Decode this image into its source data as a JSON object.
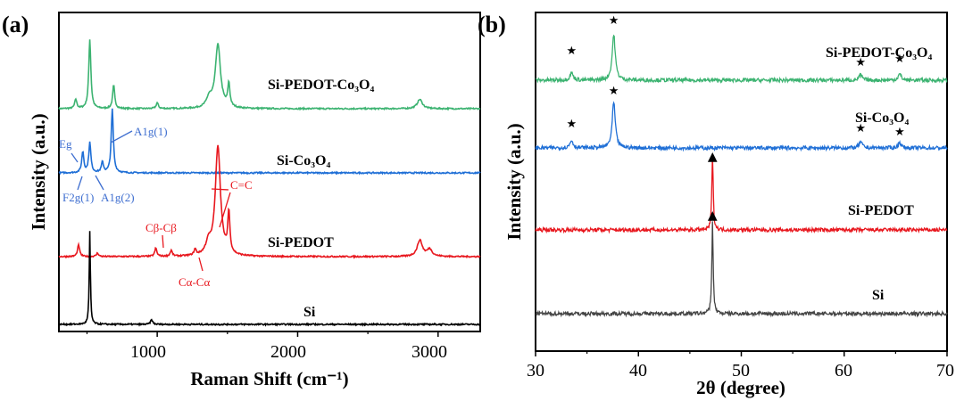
{
  "chart_data": [
    {
      "panel": "(a)",
      "type": "line",
      "xlabel": "Raman Shift (cm⁻¹)",
      "ylabel": "Intensity (a.u.)",
      "xlim": [
        300,
        3300
      ],
      "x_ticks": [
        "1000",
        "2000",
        "3000"
      ],
      "x_tick_values": [
        1000,
        2000,
        3000
      ],
      "y_ticks": "none",
      "series": [
        {
          "name": "Si-PEDOT-Co3O4",
          "label": "Si-PEDOT-Co₃O₄",
          "color": "#3cb371",
          "peaks": [
            [
              420,
              0.08
            ],
            [
              520,
              0.6
            ],
            [
              690,
              0.2
            ],
            [
              1000,
              0.05
            ],
            [
              1370,
              0.08
            ],
            [
              1432,
              0.55
            ],
            [
              1510,
              0.2
            ],
            [
              2870,
              0.08
            ]
          ]
        },
        {
          "name": "Si-Co3O4",
          "label": "Si-Co₃O₄",
          "color": "#1f6fd6",
          "peaks": [
            [
              470,
              0.18
            ],
            [
              520,
              0.26
            ],
            [
              610,
              0.09
            ],
            [
              680,
              0.55
            ]
          ]
        },
        {
          "name": "Si-PEDOT",
          "label": "Si-PEDOT",
          "color": "#e8171e",
          "peaks": [
            [
              440,
              0.1
            ],
            [
              575,
              0.03
            ],
            [
              990,
              0.07
            ],
            [
              1100,
              0.05
            ],
            [
              1270,
              0.05
            ],
            [
              1365,
              0.1
            ],
            [
              1432,
              0.95
            ],
            [
              1510,
              0.35
            ],
            [
              2870,
              0.14
            ],
            [
              2940,
              0.06
            ]
          ]
        },
        {
          "name": "Si",
          "label": "Si",
          "color": "#000000",
          "peaks": [
            [
              520,
              0.8
            ],
            [
              960,
              0.04
            ]
          ]
        }
      ],
      "annotations": [
        {
          "text": "A1g(1)",
          "color": "#3f6fd0"
        },
        {
          "text": "Eg",
          "color": "#3f6fd0"
        },
        {
          "text": "F2g(1)",
          "color": "#3f6fd0"
        },
        {
          "text": "A1g(2)",
          "color": "#3f6fd0"
        },
        {
          "text": "C=C",
          "color": "#e8171e"
        },
        {
          "text": "Cβ-Cβ",
          "color": "#e8171e"
        },
        {
          "text": "Cα-Cα",
          "color": "#e8171e"
        }
      ]
    },
    {
      "panel": "(b)",
      "type": "line",
      "xlabel": "2θ (degree)",
      "ylabel": "Intensity (a.u.)",
      "xlim": [
        30,
        70
      ],
      "x_ticks": [
        "30",
        "40",
        "50",
        "60",
        "70"
      ],
      "x_tick_values": [
        30,
        40,
        50,
        60,
        70
      ],
      "y_ticks": "none",
      "series": [
        {
          "name": "Si-PEDOT-Co3O4",
          "label": "Si-PEDOT-Co₃O₄",
          "color": "#3cb371",
          "peaks": [
            [
              33.5,
              0.1
            ],
            [
              37.6,
              0.6
            ],
            [
              61.6,
              0.07
            ],
            [
              65.4,
              0.08
            ]
          ],
          "markers": "★ at 33.5, 37.6, 61.6, 65.4"
        },
        {
          "name": "Si-Co3O4",
          "label": "Si-Co₃O₄",
          "color": "#1f6fd6",
          "peaks": [
            [
              33.5,
              0.1
            ],
            [
              37.6,
              0.6
            ],
            [
              61.6,
              0.08
            ],
            [
              65.4,
              0.07
            ]
          ],
          "markers": "★ at 33.5, 37.6, 61.6, 65.4"
        },
        {
          "name": "Si-PEDOT",
          "label": "Si-PEDOT",
          "color": "#e8171e",
          "peaks": [
            [
              47.2,
              1.0
            ]
          ],
          "markers": "▲ at 47.2"
        },
        {
          "name": "Si",
          "label": "Si",
          "color": "#444444",
          "peaks": [
            [
              47.2,
              1.2
            ]
          ],
          "markers": "▲ at 47.2"
        }
      ]
    }
  ],
  "symbols": {
    "star": "★",
    "triangle": "▲"
  }
}
